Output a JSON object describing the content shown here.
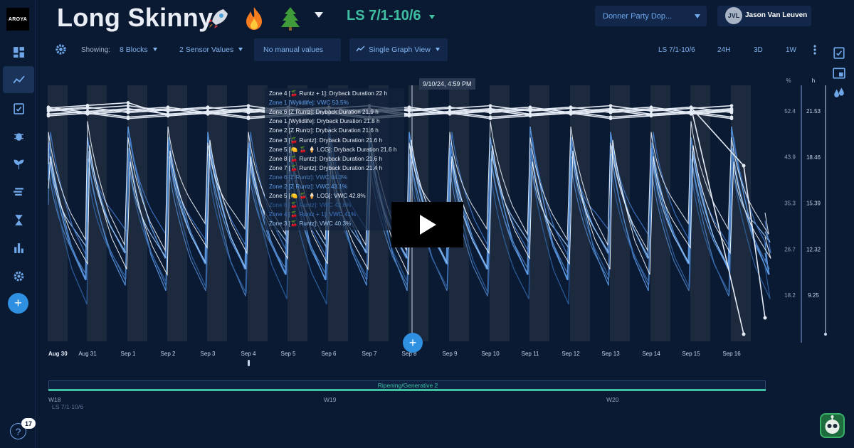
{
  "app": {
    "logo_text": "AROYA"
  },
  "header": {
    "title": "Long Skinny",
    "emojis": [
      "rocket-icon",
      "fire-icon",
      "tree-icon"
    ],
    "period": "LS 7/1-10/6",
    "org_select": "Donner Party Dop...",
    "user_initials": "JVL",
    "user_name": "Jason Van Leuven"
  },
  "toolbar": {
    "showing_label": "Showing:",
    "blocks": "8 Blocks",
    "sensor_values": "2 Sensor Values",
    "manual_values": "No manual values",
    "graph_view": "Single Graph View",
    "period_button": "LS 7/1-10/6",
    "range_24h": "24H",
    "range_3d": "3D",
    "range_1w": "1W"
  },
  "sidebar": {
    "items": [
      "dashboard-icon",
      "analytics-icon",
      "tasks-icon",
      "pest-icon",
      "crop-icon",
      "harvest-icon",
      "timer-icon",
      "reports-icon",
      "settings-icon"
    ],
    "active": "analytics-icon",
    "help_badge": "17"
  },
  "tooltip": {
    "cursor_time": "9/10/24, 4:59 PM",
    "rows": [
      {
        "text": "Zone 4 [🍒 Runtz + 1]: Dryback Duration 22 h",
        "color": "#e6ecf6"
      },
      {
        "text": "Zone 1 [Wylidlife]: VWC 53.5%",
        "color": "#5d9fec"
      },
      {
        "text": "Zone 6 [Z Runtz]: Dryback Duration 21.9 h",
        "color": "#e6ecf6"
      },
      {
        "text": "Zone 1 [Wylidlife]: Dryback Duration 21.8 h",
        "color": "#e6ecf6"
      },
      {
        "text": "Zone 2 [Z Runtz]: Dryback Duration 21.6 h",
        "color": "#e6ecf6"
      },
      {
        "text": "Zone 3 [🍒 Runtz]: Dryback Duration 21.6 h",
        "color": "#e6ecf6"
      },
      {
        "text": "Zone 5 [🍋 🍒 🍦 LCG]: Dryback Duration 21.6 h",
        "color": "#e6ecf6"
      },
      {
        "text": "Zone 8 [🍒 Runtz]: Dryback Duration 21.6 h",
        "color": "#e6ecf6"
      },
      {
        "text": "Zone 7 [🍒 Runtz]: Dryback Duration 21.4 h",
        "color": "#e6ecf6"
      },
      {
        "text": "Zone 6 [Z Runtz]: VWC 44.3%",
        "color": "#4f83c4"
      },
      {
        "text": "Zone 2 [Z Runtz]: VWC 43.1%",
        "color": "#5d9fec"
      },
      {
        "text": "Zone 5 [🍋 🍒 🍦 LCG]: VWC 42.8%",
        "color": "#e6ecf6"
      },
      {
        "text": "Zone 8 [🍒 Runtz]: VWC 42.6%",
        "color": "#2e5f9e"
      },
      {
        "text": "Zone 4 [🍒 Runtz + 1]: VWC 41%",
        "color": "#3f78c8"
      },
      {
        "text": "Zone 3 [🍒 Runtz]: VWC 40.3%",
        "color": "#9bc4f2"
      }
    ]
  },
  "chart_data": {
    "type": "line",
    "x_ticks": [
      "Aug 30",
      "Aug 31",
      "Sep 1",
      "Sep 2",
      "Sep 3",
      "Sep 4",
      "Sep 5",
      "Sep 6",
      "Sep 7",
      "Sep 8",
      "Sep 9",
      "Sep 10",
      "Sep 11",
      "Sep 12",
      "Sep 13",
      "Sep 14",
      "Sep 15",
      "Sep 16"
    ],
    "y_left": {
      "unit": "%",
      "ticks": [
        52.4,
        43.9,
        35.3,
        26.7,
        18.2
      ]
    },
    "y_right": {
      "unit": "h",
      "ticks": [
        21.53,
        18.46,
        15.39,
        12.32,
        9.25
      ]
    },
    "series": [
      {
        "name": "Zone 1 [Wylidlife]: VWC",
        "color": "#5d9fec"
      },
      {
        "name": "Zone 2 [Z Runtz]: VWC",
        "color": "#5d9fec"
      },
      {
        "name": "Zone 3 [🍒 Runtz]: VWC",
        "color": "#9bc4f2"
      },
      {
        "name": "Zone 4 [🍒 Runtz + 1]: VWC",
        "color": "#3f78c8"
      },
      {
        "name": "Zone 5 [🍋 🍒 🍦 LCG]: VWC",
        "color": "#e6ecf6"
      },
      {
        "name": "Zone 6 [Z Runtz]: VWC",
        "color": "#4f83c4"
      },
      {
        "name": "Zone 8 [🍒 Runtz]: VWC",
        "color": "#2e5f9e"
      },
      {
        "name": "Dryback Duration (zones 1-8)",
        "color": "#e6ecf6"
      }
    ],
    "grid": false,
    "legend": "tooltip"
  },
  "phase": {
    "label": "Ripening/Generative 2",
    "weeks": [
      "W18",
      "W19",
      "W20"
    ],
    "period_strip": "LS 7/1-10/6"
  }
}
